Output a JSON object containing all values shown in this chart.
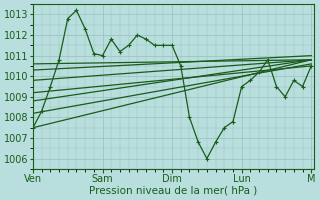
{
  "xlabel": "Pression niveau de la mer( hPa )",
  "yticks": [
    1006,
    1007,
    1008,
    1009,
    1010,
    1011,
    1012,
    1013
  ],
  "ylim": [
    1005.5,
    1013.5
  ],
  "xtick_labels": [
    "Ven",
    "Sam",
    "Dim",
    "Lun",
    "M"
  ],
  "xtick_pos": [
    0,
    24,
    48,
    72,
    96
  ],
  "xlim": [
    0,
    97
  ],
  "bg_color": "#b8dede",
  "grid_color": "#9abebe",
  "line_color": "#1a5c1a",
  "forecast_x": [
    0,
    3,
    6,
    9,
    12,
    15,
    18,
    21,
    24,
    27,
    30,
    33,
    36,
    39,
    42,
    45,
    48,
    51,
    54,
    57,
    60,
    63,
    66,
    69,
    72,
    75,
    78,
    81,
    84,
    87,
    90,
    93,
    96
  ],
  "forecast_y": [
    1007.5,
    1008.3,
    1009.5,
    1010.8,
    1012.8,
    1013.2,
    1012.3,
    1011.1,
    1011.0,
    1011.8,
    1011.2,
    1011.5,
    1012.0,
    1011.8,
    1011.5,
    1011.5,
    1011.5,
    1010.5,
    1008.0,
    1006.8,
    1006.0,
    1006.8,
    1007.5,
    1007.8,
    1009.5,
    1009.8,
    1010.2,
    1010.8,
    1009.5,
    1009.0,
    1009.8,
    1009.5,
    1010.5
  ],
  "straight_lines": [
    {
      "x0": 0,
      "y0": 1007.5,
      "x1": 96,
      "y1": 1010.8
    },
    {
      "x0": 0,
      "y0": 1008.2,
      "x1": 96,
      "y1": 1010.6
    },
    {
      "x0": 0,
      "y0": 1008.8,
      "x1": 96,
      "y1": 1010.8
    },
    {
      "x0": 0,
      "y0": 1009.2,
      "x1": 96,
      "y1": 1010.5
    },
    {
      "x0": 0,
      "y0": 1009.8,
      "x1": 96,
      "y1": 1010.8
    },
    {
      "x0": 0,
      "y0": 1010.3,
      "x1": 96,
      "y1": 1011.0
    },
    {
      "x0": 0,
      "y0": 1010.6,
      "x1": 96,
      "y1": 1010.8
    }
  ]
}
